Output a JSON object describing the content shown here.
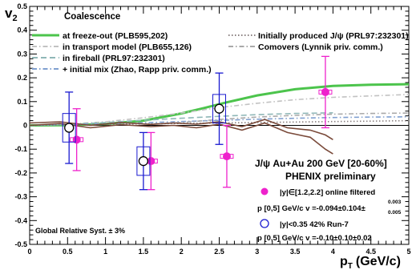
{
  "chart_data": {
    "type": "scatter",
    "ylabel_main": "v",
    "ylabel_sub": "2",
    "xlabel_main": "p",
    "xlabel_sub": "T",
    "xlabel_unit": "(GeV/c)",
    "xlim": [
      0,
      5
    ],
    "ylim": [
      -0.5,
      0.5
    ],
    "x_ticks": [
      "0",
      "0.5",
      "1",
      "1.5",
      "2",
      "2.5",
      "3",
      "3.5",
      "4",
      "4.5",
      "5"
    ],
    "y_ticks": [
      "-0.5",
      "-0.4",
      "-0.3",
      "-0.2",
      "-0.1",
      "0",
      "0.1",
      "0.2",
      "0.3",
      "0.4",
      "0.5"
    ],
    "x_tick_values": [
      0,
      0.5,
      1,
      1.5,
      2,
      2.5,
      3,
      3.5,
      4,
      4.5,
      5
    ],
    "y_tick_values": [
      -0.5,
      -0.4,
      -0.3,
      -0.2,
      -0.1,
      0,
      0.1,
      0.2,
      0.3,
      0.4,
      0.5
    ],
    "zero_line": true,
    "legend_header": "Coalescence",
    "legend_left": [
      {
        "label": "at freeze-out (PLB595,202)",
        "color": "#4cc44c",
        "style": "solid"
      },
      {
        "label": "in transport model (PLB655,126)",
        "color": "#c2c2c2",
        "style": "dashdot"
      },
      {
        "label": "in fireball (PRL97:232301)",
        "color": "#8fb7b7",
        "style": "dashed"
      },
      {
        "label": "+ initial mix (Zhao, Rapp priv. comm.)",
        "color": "#7f9fd0",
        "style": "dashdot"
      }
    ],
    "legend_right": [
      {
        "label": "Initially produced J/ψ (PRL97:232301)",
        "color": "#8a8080",
        "style": "dotted"
      },
      {
        "label": "Comovers (Lynnik priv. comm.)",
        "color": "#a9a9a9",
        "style": "dashdot"
      }
    ],
    "series": [
      {
        "name": "|y|∈[1.2,2.2] online filtered",
        "marker": "filled-circle",
        "color": "#ee22cc",
        "points": [
          {
            "x": 0.62,
            "y": -0.06,
            "err_low": 0.13,
            "err_high": 0.13
          },
          {
            "x": 1.6,
            "y": -0.15,
            "err_low": 0.12,
            "err_high": 0.12
          },
          {
            "x": 2.6,
            "y": -0.13,
            "err_low": 0.13,
            "err_high": 0.13
          },
          {
            "x": 3.9,
            "y": 0.14,
            "err_low": 0.15,
            "err_high": 0.15
          }
        ]
      },
      {
        "name": "|y|<0.35 42% Run-7",
        "marker": "open-circle",
        "color": "#1a1ad0",
        "points": [
          {
            "x": 0.52,
            "y": -0.01,
            "err_low": 0.15,
            "err_high": 0.15
          },
          {
            "x": 1.5,
            "y": -0.15,
            "err_low": 0.12,
            "err_high": 0.12
          },
          {
            "x": 2.5,
            "y": 0.07,
            "err_low": 0.15,
            "err_high": 0.15
          }
        ]
      }
    ],
    "theory_curves": [
      {
        "name": "at freeze-out (PLB595,202)",
        "color": "#4cc44c",
        "style": "solid",
        "x": [
          0,
          0.5,
          1.0,
          1.5,
          2.0,
          2.3,
          2.6,
          3.0,
          3.5,
          4.0,
          4.5,
          5.0
        ],
        "y": [
          0,
          0.001,
          0.006,
          0.02,
          0.05,
          0.073,
          0.097,
          0.126,
          0.152,
          0.166,
          0.171,
          0.173
        ]
      },
      {
        "name": "in transport model (PLB655,126)",
        "color": "#c2c2c2",
        "style": "dashdot",
        "x": [
          0,
          0.5,
          1.0,
          1.5,
          2.0,
          2.5,
          3.0,
          3.5,
          4.0,
          4.5,
          5.0
        ],
        "y": [
          0,
          0.005,
          0.015,
          0.032,
          0.052,
          0.075,
          0.093,
          0.108,
          0.118,
          0.124,
          0.13
        ]
      },
      {
        "name": "in fireball (PRL97:232301)",
        "color": "#8fb7b7",
        "style": "dashed",
        "x": [
          0,
          0.5,
          1.0,
          1.5,
          2.0,
          2.5,
          3.0,
          3.5,
          4.0
        ],
        "y": [
          0,
          0.004,
          0.012,
          0.022,
          0.03,
          0.038,
          0.045,
          0.05,
          0.053
        ]
      },
      {
        "name": "+ initial mix (Zhao, Rapp priv. comm.)",
        "color": "#7f9fd0",
        "style": "dashdot",
        "x": [
          0,
          0.5,
          1.0,
          1.5,
          2.0,
          2.5,
          3.0,
          3.5,
          4.0,
          4.5,
          5.0
        ],
        "y": [
          0,
          0.003,
          0.007,
          0.011,
          0.016,
          0.021,
          0.026,
          0.03,
          0.033,
          0.035,
          0.036
        ]
      },
      {
        "name": "Initially produced J/ψ (PRL97:232301)",
        "color": "#8a8080",
        "style": "dotted",
        "x": [
          0,
          0.5,
          1.0,
          1.5,
          2.0,
          2.5,
          3.0,
          3.5,
          4.0,
          4.5,
          5.0
        ],
        "y": [
          0,
          0.002,
          0.004,
          0.006,
          0.008,
          0.01,
          0.012,
          0.014,
          0.016,
          0.018,
          0.02
        ]
      },
      {
        "name": "Comovers (Lynnik priv. comm.)",
        "color": "#a9a9a9",
        "style": "dashdot",
        "x": [
          1.5,
          2.0,
          2.5,
          3.0,
          3.5,
          4.0,
          4.5,
          5.0
        ],
        "y": [
          0.005,
          0.012,
          0.025,
          0.035,
          0.042,
          0.047,
          0.05,
          0.052
        ]
      },
      {
        "name": "",
        "color": "#7a4a3a",
        "style": "solid",
        "x": [
          0,
          0.4,
          0.8,
          1.2,
          1.6,
          1.9,
          2.2,
          2.5,
          2.8,
          3.1,
          3.4,
          3.7,
          3.9,
          4.0
        ],
        "y": [
          0.0,
          0.008,
          -0.01,
          0.003,
          -0.005,
          0.0,
          -0.01,
          0.005,
          -0.02,
          0.01,
          -0.03,
          -0.05,
          -0.1,
          -0.12
        ]
      },
      {
        "name": "",
        "color": "#7a4a3a",
        "style": "solid",
        "x": [
          0,
          0.4,
          0.8,
          1.2,
          1.6,
          1.9,
          2.2,
          2.5,
          2.8,
          3.1,
          3.4,
          3.7,
          3.9,
          4.0
        ],
        "y": [
          0.01,
          0.015,
          0.0,
          0.012,
          0.004,
          0.01,
          0.005,
          0.015,
          -0.005,
          0.025,
          -0.01,
          -0.02,
          -0.04,
          -0.06
        ]
      }
    ]
  },
  "annotation": {
    "title_line1": "J/ψ Au+Au 200 GeV [20-60%]",
    "title_line2": "PHENIX preliminary",
    "legend1_label": "|y|∈[1.2,2.2] online filtered",
    "legend1_fit": "p  [0,5] GeV/c  v =-0.094±0.104±",
    "legend1_fit_sup": "0.003",
    "legend1_fit_sub": "0.005",
    "legend2_label": "|y|<0.35 42% Run-7",
    "legend2_fit": "p  [0,5] GeV/c  v =-0.10±0.10±0.02",
    "syst": "Global Relative Syst. ± 3%"
  },
  "colors": {
    "frame": "#000000",
    "text": "#000000"
  }
}
